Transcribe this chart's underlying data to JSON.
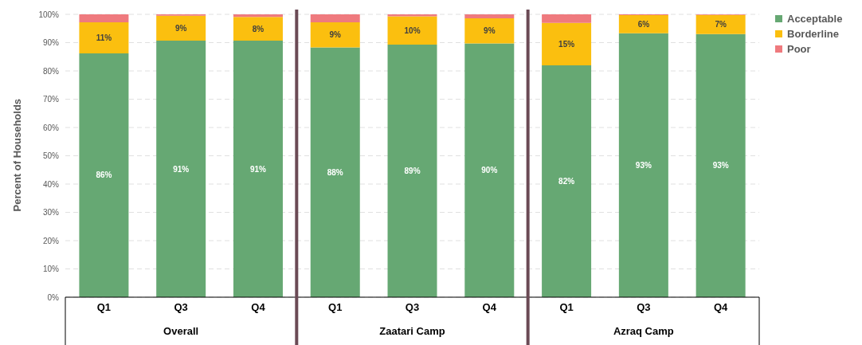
{
  "chart_data": {
    "type": "bar",
    "stacked": true,
    "ylabel": "Percent of Households",
    "categories": [
      "Q1",
      "Q3",
      "Q4",
      "Q1",
      "Q3",
      "Q4",
      "Q1",
      "Q3",
      "Q4"
    ],
    "annotations": [
      "Overall",
      "Zaatari Camp",
      "Azraq Camp"
    ],
    "series": [
      {
        "name": "Acceptable",
        "color": "#66a873",
        "values": [
          86.2,
          90.7,
          90.7,
          88.3,
          89.3,
          89.7,
          82.0,
          93.3,
          93.0
        ],
        "value_labels": [
          "86%",
          "91%",
          "91%",
          "88%",
          "89%",
          "90%",
          "82%",
          "93%",
          "93%"
        ]
      },
      {
        "name": "Borderline",
        "color": "#fbbf0f",
        "values": [
          11.0,
          8.8,
          8.4,
          8.9,
          10.0,
          8.9,
          15.0,
          6.4,
          6.8
        ],
        "value_labels": [
          "11%",
          "9%",
          "8%",
          "9%",
          "10%",
          "9%",
          "15%",
          "6%",
          "7%"
        ]
      },
      {
        "name": "Poor",
        "color": "#ef7a7e",
        "values": [
          2.8,
          0.5,
          0.9,
          2.8,
          0.7,
          1.4,
          3.0,
          0.3,
          0.2
        ]
      }
    ],
    "ylim": [
      0,
      100
    ],
    "yticks": [
      {
        "value": 0,
        "label": "0%"
      },
      {
        "value": 10,
        "label": "10%"
      },
      {
        "value": 20,
        "label": "20%"
      },
      {
        "value": 30,
        "label": "30%"
      },
      {
        "value": 40,
        "label": "40%"
      },
      {
        "value": 50,
        "label": "50%"
      },
      {
        "value": 60,
        "label": "60%"
      },
      {
        "value": 70,
        "label": "70%"
      },
      {
        "value": 80,
        "label": "80%"
      },
      {
        "value": 90,
        "label": "90%"
      },
      {
        "value": 100,
        "label": "100%"
      }
    ],
    "grid": "y",
    "legend": "top right"
  }
}
